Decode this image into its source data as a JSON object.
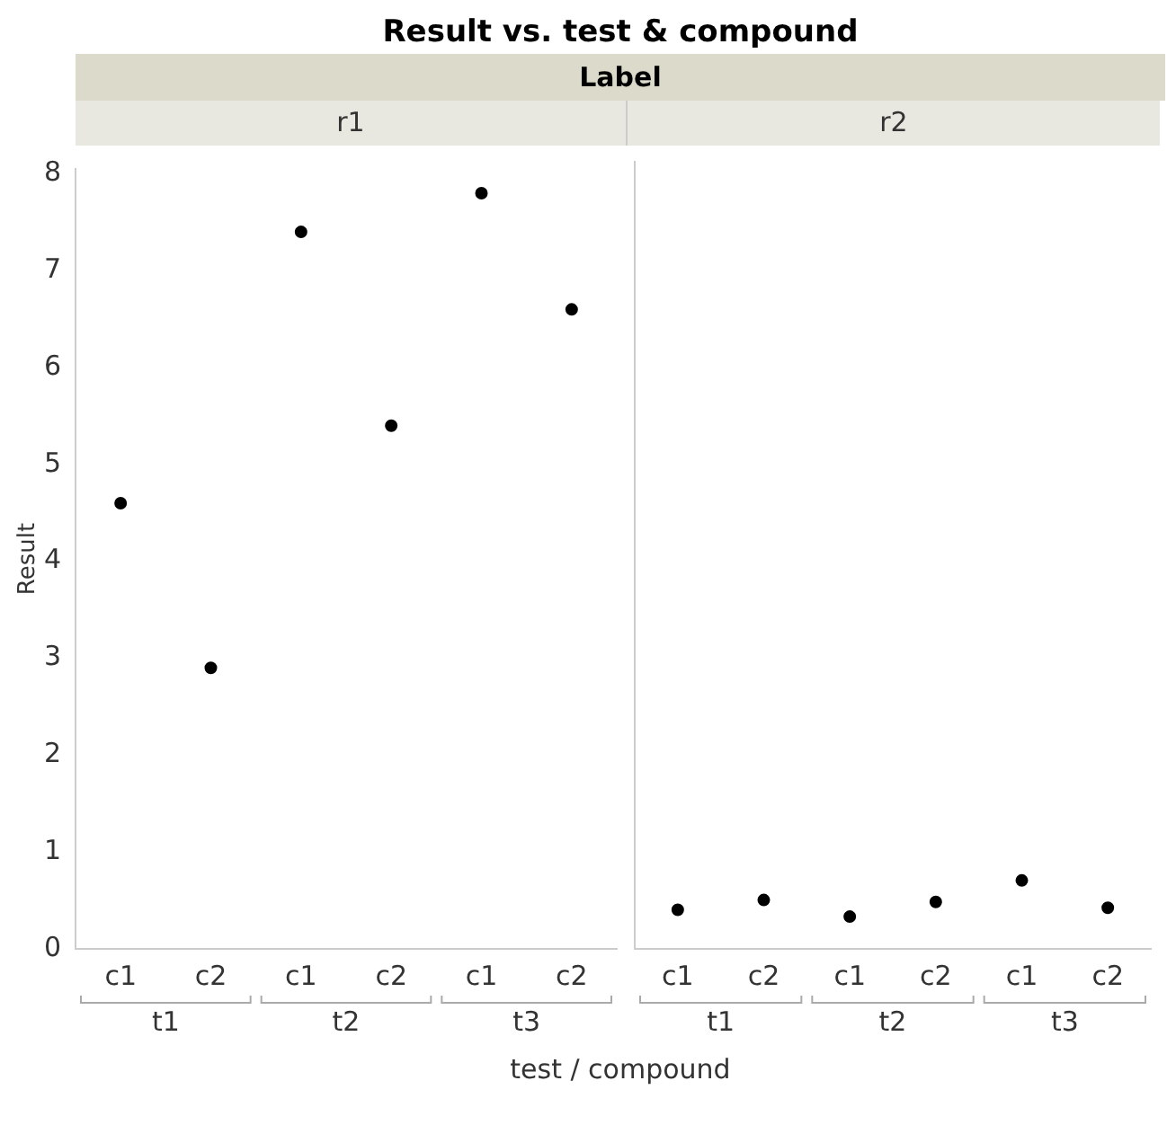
{
  "chart_data": [
    {
      "type": "scatter",
      "title": "Result vs. test & compound",
      "legend_title": "Label",
      "subtitle": "r1",
      "xlabel": "test / compound",
      "ylabel": "Result",
      "categories": [
        "c1",
        "c2",
        "c1",
        "c2",
        "c1",
        "c2"
      ],
      "annotations": [
        "t1",
        "t2",
        "t3"
      ],
      "values": [
        4.6,
        2.9,
        7.4,
        5.4,
        7.8,
        6.6
      ],
      "color": "#000000",
      "marker": "circle",
      "ylim": [
        0,
        8.05
      ],
      "yticks": [
        0,
        1,
        2,
        3,
        4,
        5,
        6,
        7,
        8
      ],
      "grid": false
    },
    {
      "type": "scatter",
      "subtitle": "r2",
      "categories": [
        "c1",
        "c2",
        "c1",
        "c2",
        "c1",
        "c2"
      ],
      "annotations": [
        "t1",
        "t2",
        "t3"
      ],
      "values": [
        0.4,
        0.5,
        0.33,
        0.48,
        0.7,
        0.42
      ],
      "color": "#000000",
      "marker": "circle",
      "ylim": [
        0,
        8.05
      ],
      "yticks": [
        0,
        1,
        2,
        3,
        4,
        5,
        6,
        7,
        8
      ],
      "grid": false,
      "tick_labels": "x"
    }
  ]
}
